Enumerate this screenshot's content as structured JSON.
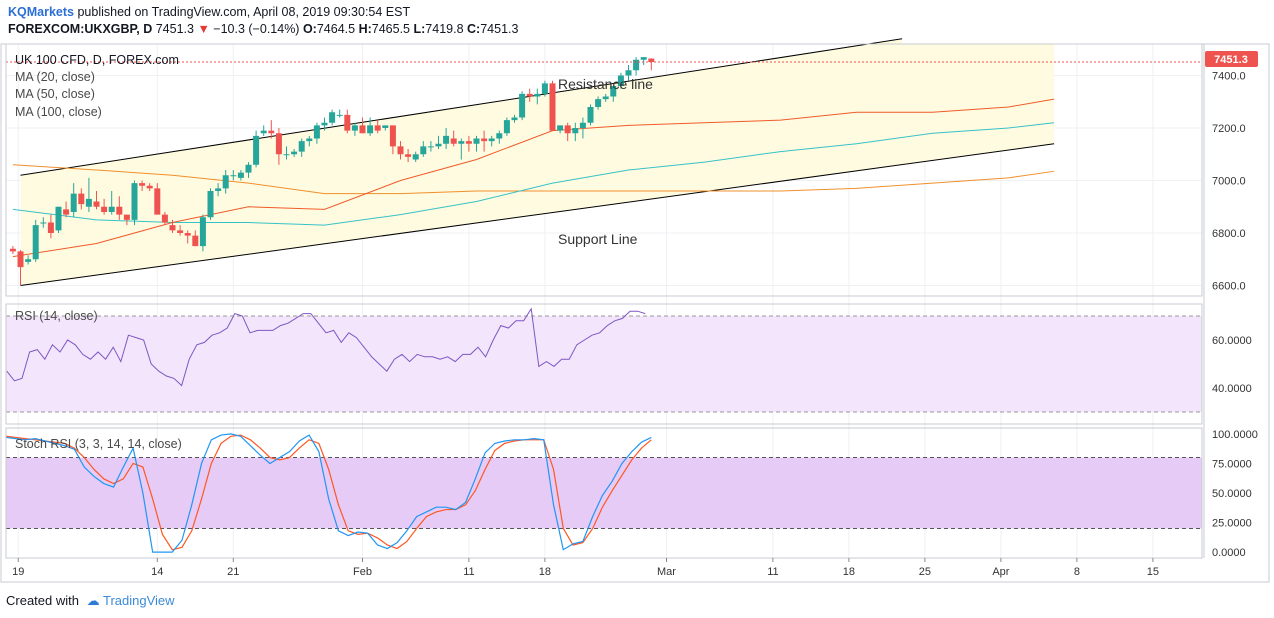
{
  "header": {
    "brand": "KQMarkets",
    "published": "published on TradingView.com, April 08, 2019 09:30:54 EST",
    "symbol": "FOREXCOM:UKXGBP, D",
    "last": "7451.3",
    "change": "−10.3 (−0.14%)",
    "o_label": "O:",
    "o_value": "7464.5",
    "h_label": "H:",
    "h_value": "7465.5",
    "l_label": "L:",
    "l_value": "7419.8",
    "c_label": "C:",
    "c_value": "7451.3"
  },
  "legend": {
    "title": "UK 100 CFD, D, FOREX.com",
    "ma20": "MA (20, close)",
    "ma50": "MA (50, close)",
    "ma100": "MA (100, close)"
  },
  "annotations": {
    "resistance": "Resistance line",
    "support": "Support Line"
  },
  "rsi_label": "RSI (14, close)",
  "stoch_label": "Stoch RSI (3, 3, 14, 14, close)",
  "price_badge": "7451.3",
  "footer": {
    "created": "Created with",
    "brand": "TradingView"
  },
  "colors": {
    "up": "#26a69a",
    "down": "#ef5350",
    "ma20": "#f05b2a",
    "ma50": "#36c2c7",
    "ma100": "#f08f2c",
    "rsi": "#7e57c2",
    "stochK": "#2196f3",
    "stochD": "#ff5722",
    "channel": "#fffbe0",
    "rsiband": "#f3e5fb",
    "stochband": "#e6cbf7"
  },
  "chart_data": {
    "type": "candlestick",
    "title": "UK 100 CFD, D, FOREX.com",
    "price_axis": {
      "ticks": [
        "7400.0",
        "7200.0",
        "7000.0",
        "6800.0",
        "6600.0"
      ],
      "range": [
        6560,
        7520
      ]
    },
    "rsi_axis": {
      "ticks": [
        "60.0000",
        "40.0000"
      ],
      "range": [
        25,
        75
      ],
      "band": [
        30,
        70
      ]
    },
    "stoch_axis": {
      "ticks": [
        "100.0000",
        "75.0000",
        "50.0000",
        "25.0000",
        "0.0000"
      ],
      "range": [
        -5,
        105
      ],
      "band": [
        20,
        80
      ]
    },
    "x_labels": [
      {
        "label": "19",
        "bar": -0.3
      },
      {
        "label": "14",
        "bar": 18
      },
      {
        "label": "21",
        "bar": 28
      },
      {
        "label": "Feb",
        "bar": 45
      },
      {
        "label": "11",
        "bar": 59
      },
      {
        "label": "18",
        "bar": 69
      },
      {
        "label": "Mar",
        "bar": 85
      },
      {
        "label": "11",
        "bar": 99
      },
      {
        "label": "18",
        "bar": 109
      },
      {
        "label": "25",
        "bar": 119
      },
      {
        "label": "Apr",
        "bar": 129
      },
      {
        "label": "8",
        "bar": 139
      },
      {
        "label": "15",
        "bar": 149
      }
    ],
    "candles": [
      [
        6740,
        6750,
        6720,
        6730
      ],
      [
        6730,
        6735,
        6600,
        6670
      ],
      [
        6690,
        6715,
        6680,
        6700
      ],
      [
        6700,
        6850,
        6690,
        6830
      ],
      [
        6840,
        6860,
        6820,
        6840
      ],
      [
        6840,
        6870,
        6780,
        6800
      ],
      [
        6810,
        6900,
        6800,
        6900
      ],
      [
        6890,
        6920,
        6860,
        6870
      ],
      [
        6880,
        6990,
        6860,
        6950
      ],
      [
        6950,
        6970,
        6890,
        6910
      ],
      [
        6900,
        7010,
        6880,
        6930
      ],
      [
        6920,
        6960,
        6890,
        6900
      ],
      [
        6900,
        6930,
        6870,
        6880
      ],
      [
        6880,
        6960,
        6870,
        6900
      ],
      [
        6900,
        6940,
        6850,
        6870
      ],
      [
        6870,
        6870,
        6830,
        6850
      ],
      [
        6850,
        7000,
        6830,
        6990
      ],
      [
        6990,
        7000,
        6960,
        6980
      ],
      [
        6980,
        6990,
        6960,
        6970
      ],
      [
        6970,
        6990,
        6870,
        6870
      ],
      [
        6870,
        6880,
        6830,
        6840
      ],
      [
        6830,
        6850,
        6800,
        6810
      ],
      [
        6810,
        6830,
        6790,
        6800
      ],
      [
        6800,
        6810,
        6760,
        6790
      ],
      [
        6790,
        6810,
        6750,
        6750
      ],
      [
        6750,
        6870,
        6730,
        6860
      ],
      [
        6860,
        6970,
        6850,
        6960
      ],
      [
        6960,
        6990,
        6940,
        6970
      ],
      [
        6970,
        7040,
        6950,
        7020
      ],
      [
        7020,
        7040,
        7000,
        7020
      ],
      [
        7010,
        7040,
        7000,
        7030
      ],
      [
        7030,
        7070,
        7010,
        7060
      ],
      [
        7060,
        7190,
        7050,
        7170
      ],
      [
        7180,
        7210,
        7170,
        7190
      ],
      [
        7190,
        7230,
        7160,
        7180
      ],
      [
        7180,
        7200,
        7060,
        7100
      ],
      [
        7100,
        7130,
        7080,
        7100
      ],
      [
        7100,
        7120,
        7090,
        7110
      ],
      [
        7110,
        7160,
        7090,
        7150
      ],
      [
        7150,
        7170,
        7130,
        7160
      ],
      [
        7160,
        7220,
        7140,
        7210
      ],
      [
        7210,
        7240,
        7190,
        7220
      ],
      [
        7220,
        7270,
        7210,
        7260
      ],
      [
        7250,
        7270,
        7240,
        7250
      ],
      [
        7250,
        7270,
        7180,
        7190
      ],
      [
        7190,
        7220,
        7170,
        7210
      ],
      [
        7210,
        7240,
        7180,
        7180
      ],
      [
        7180,
        7240,
        7170,
        7210
      ],
      [
        7210,
        7230,
        7180,
        7190
      ],
      [
        7200,
        7210,
        7190,
        7210
      ],
      [
        7210,
        7210,
        7100,
        7130
      ],
      [
        7130,
        7150,
        7080,
        7100
      ],
      [
        7100,
        7120,
        7070,
        7090
      ],
      [
        7080,
        7110,
        7070,
        7100
      ],
      [
        7100,
        7150,
        7090,
        7130
      ],
      [
        7130,
        7150,
        7110,
        7130
      ],
      [
        7130,
        7170,
        7120,
        7140
      ],
      [
        7140,
        7200,
        7120,
        7170
      ],
      [
        7160,
        7190,
        7130,
        7140
      ],
      [
        7140,
        7160,
        7080,
        7150
      ],
      [
        7150,
        7170,
        7110,
        7140
      ],
      [
        7140,
        7170,
        7110,
        7160
      ],
      [
        7160,
        7190,
        7110,
        7150
      ],
      [
        7150,
        7170,
        7130,
        7160
      ],
      [
        7160,
        7190,
        7140,
        7180
      ],
      [
        7180,
        7240,
        7170,
        7230
      ],
      [
        7230,
        7250,
        7220,
        7240
      ],
      [
        7240,
        7340,
        7230,
        7330
      ],
      [
        7330,
        7350,
        7300,
        7320
      ],
      [
        7320,
        7350,
        7290,
        7330
      ],
      [
        7330,
        7380,
        7320,
        7370
      ],
      [
        7370,
        7380,
        7190,
        7190
      ],
      [
        7190,
        7210,
        7180,
        7210
      ],
      [
        7210,
        7220,
        7150,
        7180
      ],
      [
        7180,
        7220,
        7150,
        7200
      ],
      [
        7200,
        7240,
        7160,
        7220
      ],
      [
        7220,
        7290,
        7210,
        7280
      ],
      [
        7280,
        7320,
        7270,
        7310
      ],
      [
        7310,
        7330,
        7300,
        7320
      ],
      [
        7320,
        7360,
        7300,
        7360
      ],
      [
        7360,
        7410,
        7350,
        7400
      ],
      [
        7400,
        7440,
        7380,
        7420
      ],
      [
        7420,
        7470,
        7400,
        7460
      ],
      [
        7460,
        7470,
        7440,
        7470
      ],
      [
        7464.5,
        7465.5,
        7419.8,
        7451.3
      ]
    ],
    "bar_offset": 55,
    "ma20": [
      [
        -1,
        6710
      ],
      [
        10,
        6760
      ],
      [
        20,
        6840
      ],
      [
        30,
        6900
      ],
      [
        40,
        6890
      ],
      [
        50,
        7000
      ],
      [
        60,
        7080
      ],
      [
        70,
        7190
      ],
      [
        80,
        7210
      ],
      [
        90,
        7220
      ],
      [
        100,
        7230
      ],
      [
        110,
        7260
      ],
      [
        120,
        7260
      ],
      [
        130,
        7280
      ],
      [
        136,
        7310
      ]
    ],
    "ma50": [
      [
        -1,
        6890
      ],
      [
        10,
        6850
      ],
      [
        20,
        6840
      ],
      [
        30,
        6840
      ],
      [
        40,
        6830
      ],
      [
        50,
        6870
      ],
      [
        60,
        6920
      ],
      [
        70,
        6990
      ],
      [
        80,
        7040
      ],
      [
        90,
        7070
      ],
      [
        100,
        7110
      ],
      [
        110,
        7140
      ],
      [
        120,
        7180
      ],
      [
        130,
        7200
      ],
      [
        136,
        7220
      ]
    ],
    "ma100": [
      [
        -1,
        7060
      ],
      [
        10,
        7040
      ],
      [
        20,
        7020
      ],
      [
        30,
        6990
      ],
      [
        40,
        6950
      ],
      [
        50,
        6950
      ],
      [
        60,
        6960
      ],
      [
        70,
        6960
      ],
      [
        80,
        6960
      ],
      [
        90,
        6960
      ],
      [
        100,
        6960
      ],
      [
        110,
        6970
      ],
      [
        120,
        6990
      ],
      [
        130,
        7010
      ],
      [
        136,
        7035
      ]
    ],
    "resistance": [
      [
        0,
        7020
      ],
      [
        116,
        7540
      ]
    ],
    "support": [
      [
        0,
        6600
      ],
      [
        136,
        7140
      ]
    ],
    "rsi": [
      47,
      43,
      44,
      55,
      56,
      52,
      58,
      55,
      60,
      58,
      54,
      52,
      55,
      52,
      57,
      51,
      62,
      61,
      60,
      50,
      47,
      45,
      44,
      41,
      52,
      58,
      59,
      62,
      63,
      65,
      71,
      70,
      63,
      64,
      64,
      64,
      66,
      67,
      69,
      71,
      71,
      67,
      63,
      64,
      59,
      63,
      61,
      57,
      53,
      50,
      47,
      52,
      54,
      51,
      54,
      53,
      53,
      52,
      53,
      51,
      54,
      54,
      57,
      53,
      60,
      66,
      65,
      68,
      68,
      73,
      49,
      51,
      49,
      52,
      52,
      58,
      60,
      62,
      63,
      66,
      68,
      69,
      72,
      72,
      71
    ],
    "stochK": [
      97,
      96,
      95,
      96,
      94,
      92,
      90,
      87,
      72,
      64,
      58,
      55,
      72,
      88,
      50,
      0,
      0,
      0,
      10,
      40,
      75,
      95,
      99,
      100,
      98,
      90,
      82,
      75,
      80,
      85,
      94,
      99,
      85,
      45,
      18,
      14,
      17,
      16,
      6,
      3,
      8,
      18,
      30,
      34,
      38,
      38,
      36,
      42,
      62,
      84,
      92,
      94,
      95,
      95,
      96,
      95,
      40,
      2,
      7,
      9,
      30,
      48,
      60,
      75,
      85,
      93,
      97
    ],
    "stochD": [
      98,
      97,
      96,
      95,
      94,
      93,
      92,
      88,
      80,
      70,
      62,
      58,
      62,
      75,
      72,
      45,
      15,
      2,
      4,
      18,
      45,
      75,
      92,
      98,
      99,
      95,
      88,
      80,
      78,
      80,
      88,
      95,
      92,
      70,
      40,
      18,
      15,
      16,
      12,
      6,
      3,
      9,
      20,
      30,
      34,
      36,
      36,
      40,
      52,
      70,
      86,
      92,
      94,
      95,
      95,
      95,
      70,
      20,
      6,
      8,
      20,
      38,
      52,
      65,
      78,
      88,
      95
    ]
  }
}
